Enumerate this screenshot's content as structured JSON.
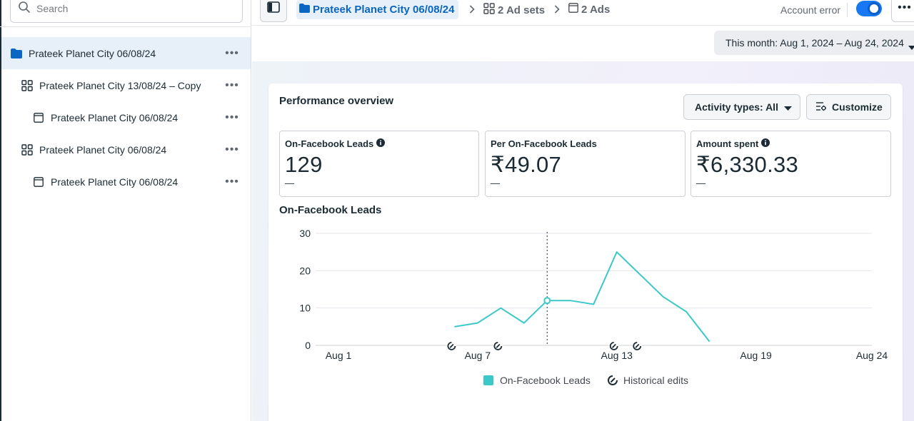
{
  "search": {
    "placeholder": "Search"
  },
  "tree": [
    {
      "label": "Prateek Planet City 06/08/24",
      "type": "campaign",
      "level": 0,
      "selected": true
    },
    {
      "label": "Prateek Planet City 13/08/24 – Copy",
      "type": "adset",
      "level": 1
    },
    {
      "label": "Prateek Planet City 06/08/24",
      "type": "ad",
      "level": 2
    },
    {
      "label": "Prateek Planet City 06/08/24",
      "type": "adset",
      "level": 1
    },
    {
      "label": "Prateek Planet City 06/08/24",
      "type": "ad",
      "level": 2
    }
  ],
  "breadcrumb": {
    "campaign": "Prateek Planet City 06/08/24",
    "adsets": "2 Ad sets",
    "ads": "2 Ads"
  },
  "status": {
    "account_error": "Account error",
    "toggle_on": true
  },
  "date_range": "This month: Aug 1, 2024 – Aug 24, 2024",
  "performance": {
    "title": "Performance overview",
    "activity_button": "Activity types: All",
    "customize_button": "Customize",
    "metrics": [
      {
        "label": "On-Facebook Leads",
        "value": "129",
        "delta": "—"
      },
      {
        "label": "Per On-Facebook Leads",
        "value": "₹49.07",
        "delta": "—"
      },
      {
        "label": "Amount spent",
        "value": "₹6,330.33",
        "delta": "—"
      }
    ]
  },
  "chart_data": {
    "type": "line",
    "title": "On-Facebook Leads",
    "x_tick_labels": [
      "Aug 1",
      "Aug 7",
      "Aug 13",
      "Aug 19",
      "Aug 24"
    ],
    "x_tick_days": [
      1,
      7,
      13,
      19,
      24
    ],
    "y_ticks": [
      0,
      10,
      20,
      30
    ],
    "ylim": [
      0,
      30
    ],
    "series": [
      {
        "name": "On-Facebook Leads",
        "color": "#3cc8c8",
        "x": [
          6,
          7,
          8,
          9,
          10,
          11,
          12,
          13,
          14,
          15,
          16,
          17
        ],
        "values": [
          5,
          6,
          10,
          6,
          12,
          12,
          11,
          25,
          19,
          13,
          9,
          1
        ]
      }
    ],
    "highlight_day": 10,
    "historical_edit_days": [
      6,
      8,
      13,
      14
    ],
    "legend": [
      "On-Facebook Leads",
      "Historical edits"
    ],
    "grid": true
  }
}
